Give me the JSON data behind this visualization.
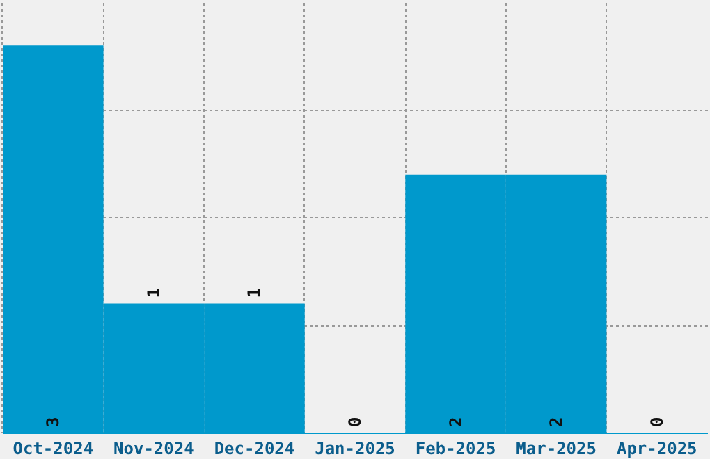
{
  "chart_data": {
    "type": "bar",
    "categories": [
      "Oct-2024",
      "Nov-2024",
      "Dec-2024",
      "Jan-2025",
      "Feb-2025",
      "Mar-2025",
      "Apr-2025"
    ],
    "values": [
      3,
      1,
      1,
      0,
      2,
      2,
      0
    ],
    "color": "#0099cc",
    "ylim": [
      0,
      3.33
    ],
    "yticks": [
      {
        "value": 0.83,
        "label": null
      },
      {
        "value": 1.67,
        "label": null
      },
      {
        "value": 2.5,
        "label": null
      }
    ],
    "grid": true,
    "data_labels": true,
    "tick_labels": "x"
  }
}
